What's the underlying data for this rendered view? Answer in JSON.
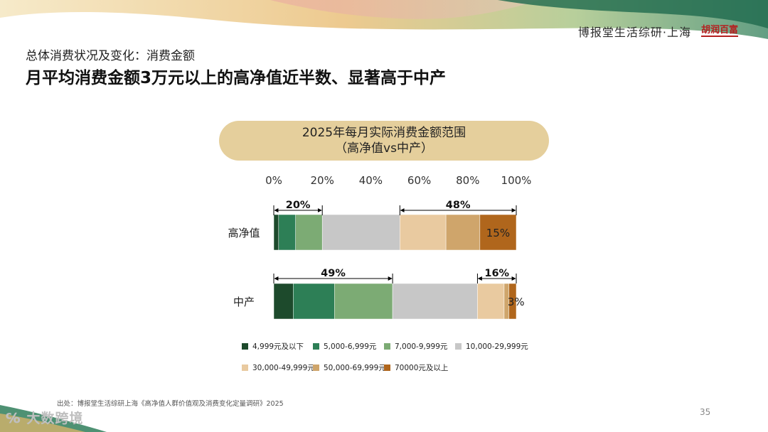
{
  "header": {
    "brand_text": "博报堂生活综研·上海",
    "logo_text": "胡润百富"
  },
  "subtitle": "总体消费状况及变化：消费金额",
  "title": "月平均消费金额3万元以上的高净值近半数、显著高于中产",
  "chart_title_line1": "2025年每月实际消费金额范围",
  "chart_title_line2": "（高净值vs中产）",
  "source": "出处：博报堂生活综研上海《高净值人群价值观及消费变化定量调研》2025",
  "page_number": "35",
  "watermark": "大数跨境",
  "chart_data": {
    "type": "bar",
    "orientation": "horizontal",
    "stacked": true,
    "xlim": [
      0,
      100
    ],
    "x_ticks": [
      "0%",
      "20%",
      "40%",
      "60%",
      "80%",
      "100%"
    ],
    "categories": [
      "高净值",
      "中产"
    ],
    "series": [
      {
        "name": "4,999元及以下",
        "color": "#1d4a2c",
        "values": [
          2,
          8
        ]
      },
      {
        "name": "5,000-6,999元",
        "color": "#2d7f56",
        "values": [
          7,
          17
        ]
      },
      {
        "name": "7,000-9,999元",
        "color": "#7cab74",
        "values": [
          11,
          24
        ]
      },
      {
        "name": "10,000-29,999元",
        "color": "#c7c7c7",
        "values": [
          32,
          35
        ]
      },
      {
        "name": "30,000-49,999元",
        "color": "#e9caa0",
        "values": [
          19,
          11
        ]
      },
      {
        "name": "50,000-69,999元",
        "color": "#cfa56b",
        "values": [
          14,
          2
        ]
      },
      {
        "name": "70000元及以上",
        "color": "#b0661c",
        "values": [
          15,
          3
        ]
      }
    ],
    "bar_labels": [
      {
        "category": "高净值",
        "series": "70000元及以上",
        "text": "15%"
      },
      {
        "category": "中产",
        "series": "70000元及以上",
        "text": "3%"
      }
    ],
    "bracket_annotations": [
      {
        "category": "高净值",
        "from": 0,
        "to": 20,
        "text": "20%"
      },
      {
        "category": "高净值",
        "from": 52,
        "to": 100,
        "text": "48%"
      },
      {
        "category": "中产",
        "from": 0,
        "to": 49,
        "text": "49%"
      },
      {
        "category": "中产",
        "from": 84,
        "to": 100,
        "text": "16%"
      }
    ]
  }
}
